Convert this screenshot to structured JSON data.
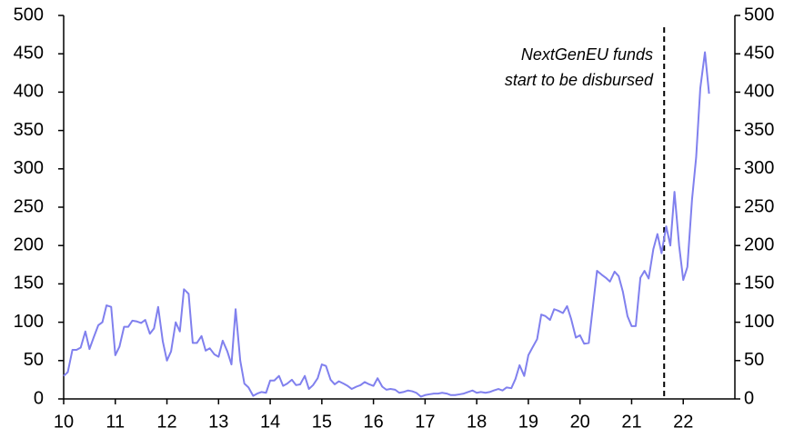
{
  "chart_data": {
    "type": "line",
    "color": "#8080ee",
    "xlim": [
      10,
      23
    ],
    "xticks": [
      10,
      11,
      12,
      13,
      14,
      15,
      16,
      17,
      18,
      19,
      20,
      21,
      22
    ],
    "ylim": [
      0,
      500
    ],
    "yticks": [
      0,
      50,
      100,
      150,
      200,
      250,
      300,
      350,
      400,
      450,
      500
    ],
    "y2lim": [
      0,
      500
    ],
    "y2ticks": [
      0,
      50,
      100,
      150,
      200,
      250,
      300,
      350,
      400,
      450,
      500
    ],
    "annotation": {
      "lines": [
        "NextGenEU funds",
        "start to be disbursed"
      ],
      "x": 21.63
    },
    "x": [
      10.0,
      10.08,
      10.17,
      10.25,
      10.33,
      10.42,
      10.5,
      10.58,
      10.67,
      10.75,
      10.83,
      10.92,
      11.0,
      11.08,
      11.17,
      11.25,
      11.33,
      11.42,
      11.5,
      11.58,
      11.67,
      11.75,
      11.83,
      11.92,
      12.0,
      12.08,
      12.17,
      12.25,
      12.33,
      12.42,
      12.5,
      12.58,
      12.67,
      12.75,
      12.83,
      12.92,
      13.0,
      13.08,
      13.17,
      13.25,
      13.33,
      13.42,
      13.5,
      13.58,
      13.67,
      13.75,
      13.83,
      13.92,
      14.0,
      14.08,
      14.17,
      14.25,
      14.33,
      14.42,
      14.5,
      14.58,
      14.67,
      14.75,
      14.83,
      14.92,
      15.0,
      15.08,
      15.17,
      15.25,
      15.33,
      15.42,
      15.5,
      15.58,
      15.67,
      15.75,
      15.83,
      15.92,
      16.0,
      16.08,
      16.17,
      16.25,
      16.33,
      16.42,
      16.5,
      16.58,
      16.67,
      16.75,
      16.83,
      16.92,
      17.0,
      17.08,
      17.17,
      17.25,
      17.33,
      17.42,
      17.5,
      17.58,
      17.67,
      17.75,
      17.83,
      17.92,
      18.0,
      18.08,
      18.17,
      18.25,
      18.33,
      18.42,
      18.5,
      18.58,
      18.67,
      18.75,
      18.83,
      18.92,
      19.0,
      19.08,
      19.17,
      19.25,
      19.33,
      19.42,
      19.5,
      19.58,
      19.67,
      19.75,
      19.83,
      19.92,
      20.0,
      20.08,
      20.17,
      20.25,
      20.33,
      20.42,
      20.5,
      20.58,
      20.67,
      20.75,
      20.83,
      20.92,
      21.0,
      21.08,
      21.17,
      21.25,
      21.33,
      21.42,
      21.5,
      21.58,
      21.67,
      21.75,
      21.83,
      21.92,
      22.0,
      22.08,
      22.17,
      22.25,
      22.33,
      22.42,
      22.5
    ],
    "values": [
      30,
      35,
      64,
      64,
      67,
      88,
      65,
      80,
      96,
      100,
      122,
      120,
      57,
      68,
      94,
      94,
      102,
      101,
      99,
      103,
      85,
      92,
      120,
      75,
      50,
      62,
      100,
      88,
      143,
      137,
      73,
      73,
      82,
      63,
      66,
      58,
      55,
      76,
      62,
      45,
      117,
      50,
      20,
      15,
      4,
      7,
      9,
      8,
      24,
      24,
      30,
      17,
      20,
      25,
      18,
      19,
      30,
      13,
      18,
      27,
      45,
      43,
      25,
      19,
      23,
      20,
      17,
      13,
      16,
      18,
      22,
      19,
      17,
      27,
      16,
      12,
      13,
      12,
      8,
      9,
      11,
      10,
      8,
      3,
      5,
      6,
      7,
      7,
      8,
      7,
      5,
      5,
      6,
      7,
      9,
      11,
      8,
      9,
      8,
      9,
      11,
      13,
      11,
      15,
      14,
      26,
      44,
      30,
      57,
      67,
      78,
      110,
      108,
      103,
      117,
      115,
      112,
      121,
      104,
      80,
      83,
      72,
      73,
      120,
      167,
      162,
      158,
      153,
      166,
      160,
      140,
      108,
      95,
      95,
      158,
      167,
      157,
      195,
      215,
      190,
      225,
      200,
      270,
      200,
      155,
      172,
      260,
      315,
      405,
      452,
      398
    ]
  }
}
